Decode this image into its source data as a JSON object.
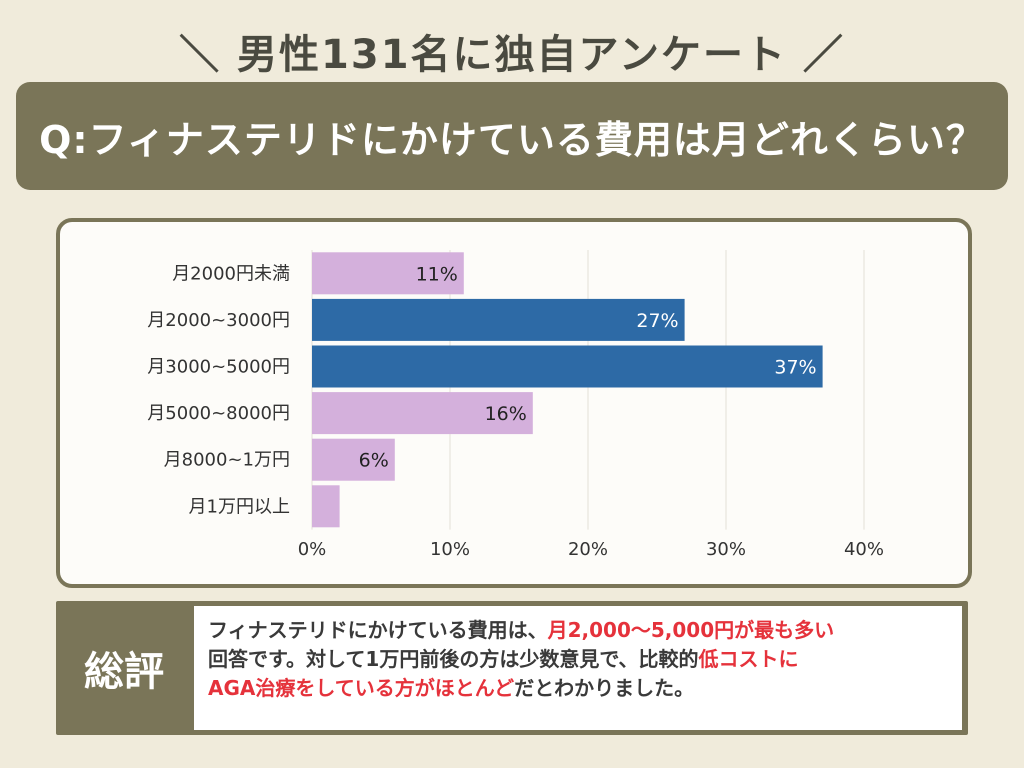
{
  "survey": {
    "header": "＼ 男性131名に独自アンケート ／",
    "question": "Q:フィナステリドにかけている費用は月どれくらい？"
  },
  "colors": {
    "background": "#f0ebdb",
    "banner": "#7a7558",
    "bar_highlight": "#2d6aa6",
    "bar_normal": "#d4b0dc",
    "emphasis_text": "#e5323b"
  },
  "chart_data": {
    "type": "bar",
    "orientation": "horizontal",
    "categories": [
      "月2000円未満",
      "月2000~3000円",
      "月3000~5000円",
      "月5000~8000円",
      "月8000~1万円",
      "月1万円以上"
    ],
    "values": [
      11,
      27,
      37,
      16,
      6,
      2
    ],
    "value_labels": [
      "11%",
      "27%",
      "37%",
      "16%",
      "6%",
      ""
    ],
    "highlighted": [
      false,
      true,
      true,
      false,
      false,
      false
    ],
    "xlim": [
      0,
      40
    ],
    "xticks": [
      "0%",
      "10%",
      "20%",
      "30%",
      "40%"
    ],
    "grid": true
  },
  "summary": {
    "label": "総評",
    "segments": [
      {
        "text": "フィナステリドにかけている費用は、",
        "highlight": false
      },
      {
        "text": "月2,000〜5,000円が最も多い",
        "highlight": true
      },
      {
        "text": "回答です。対して1万円前後の方は少数意見で、比較的",
        "highlight": false
      },
      {
        "text": "低コストに",
        "highlight": true
      },
      {
        "text": "AGA治療をしている方がほとんど",
        "highlight": true
      },
      {
        "text": "だとわかりました。",
        "highlight": false
      }
    ]
  }
}
